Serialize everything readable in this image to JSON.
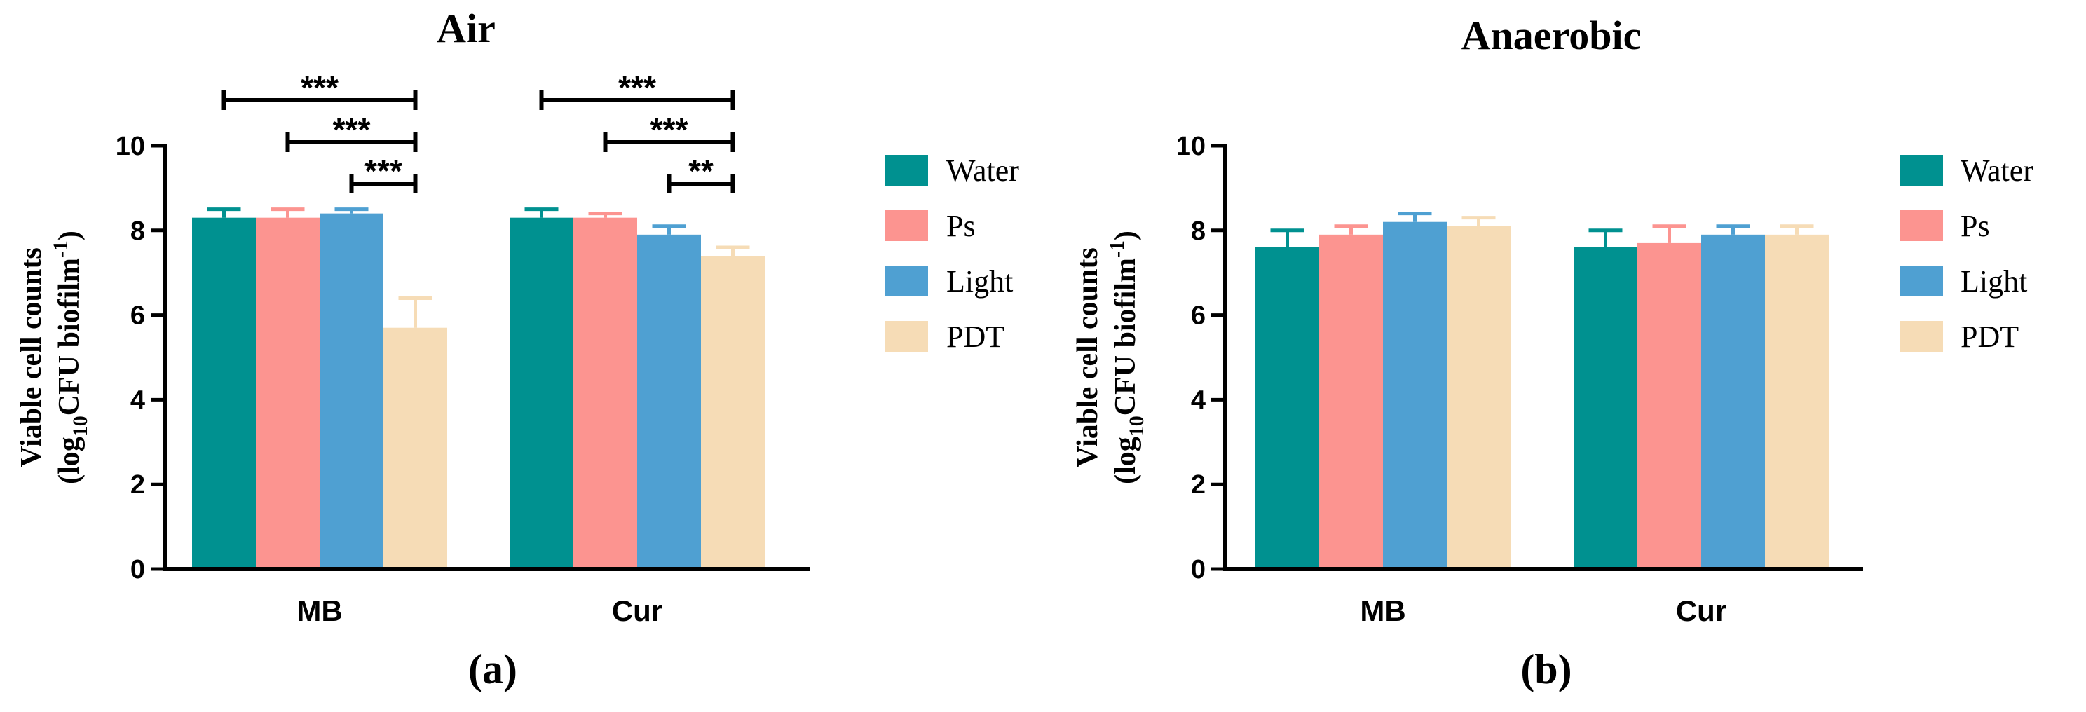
{
  "chart_data": [
    {
      "type": "bar",
      "title": "Air",
      "panel_label": "(a)",
      "ylabel_line1": "Viable cell counts",
      "ylabel_line2_prefix": "(log",
      "ylabel_line2_sub": "10",
      "ylabel_line2_mid": "CFU biofilm",
      "ylabel_line2_sup": "-1",
      "ylabel_line2_suffix": ")",
      "ylim": [
        0,
        10
      ],
      "yticks": [
        "0",
        "2",
        "4",
        "6",
        "8",
        "10"
      ],
      "categories": [
        "MB",
        "Cur"
      ],
      "series": [
        {
          "name": "Water",
          "color": "#009190",
          "values": [
            8.3,
            8.3
          ],
          "errors": [
            0.2,
            0.2
          ]
        },
        {
          "name": "Ps",
          "color": "#FC9490",
          "values": [
            8.3,
            8.3
          ],
          "errors": [
            0.2,
            0.1
          ]
        },
        {
          "name": "Light",
          "color": "#4FA0D2",
          "values": [
            8.4,
            7.9
          ],
          "errors": [
            0.1,
            0.2
          ]
        },
        {
          "name": "PDT",
          "color": "#F6DCB6",
          "values": [
            5.7,
            7.4
          ],
          "errors": [
            0.7,
            0.2
          ]
        }
      ],
      "significance": [
        {
          "category": 0,
          "from": 0,
          "to": 3,
          "label": "***",
          "level": 0
        },
        {
          "category": 0,
          "from": 1,
          "to": 3,
          "label": "***",
          "level": 1
        },
        {
          "category": 0,
          "from": 2,
          "to": 3,
          "label": "***",
          "level": 2
        },
        {
          "category": 1,
          "from": 0,
          "to": 3,
          "label": "***",
          "level": 0
        },
        {
          "category": 1,
          "from": 1,
          "to": 3,
          "label": "***",
          "level": 1
        },
        {
          "category": 1,
          "from": 2,
          "to": 3,
          "label": "**",
          "level": 2
        }
      ]
    },
    {
      "type": "bar",
      "title": "Anaerobic",
      "panel_label": "(b)",
      "ylabel_line1": "Viable cell counts",
      "ylabel_line2_prefix": "(log",
      "ylabel_line2_sub": "10",
      "ylabel_line2_mid": "CFU biofilm",
      "ylabel_line2_sup": "-1",
      "ylabel_line2_suffix": ")",
      "ylim": [
        0,
        10
      ],
      "yticks": [
        "0",
        "2",
        "4",
        "6",
        "8",
        "10"
      ],
      "categories": [
        "MB",
        "Cur"
      ],
      "series": [
        {
          "name": "Water",
          "color": "#009190",
          "values": [
            7.6,
            7.6
          ],
          "errors": [
            0.4,
            0.4
          ]
        },
        {
          "name": "Ps",
          "color": "#FC9490",
          "values": [
            7.9,
            7.7
          ],
          "errors": [
            0.2,
            0.4
          ]
        },
        {
          "name": "Light",
          "color": "#4FA0D2",
          "values": [
            8.2,
            7.9
          ],
          "errors": [
            0.2,
            0.2
          ]
        },
        {
          "name": "PDT",
          "color": "#F6DCB6",
          "values": [
            8.1,
            7.9
          ],
          "errors": [
            0.2,
            0.2
          ]
        }
      ],
      "significance": []
    }
  ]
}
